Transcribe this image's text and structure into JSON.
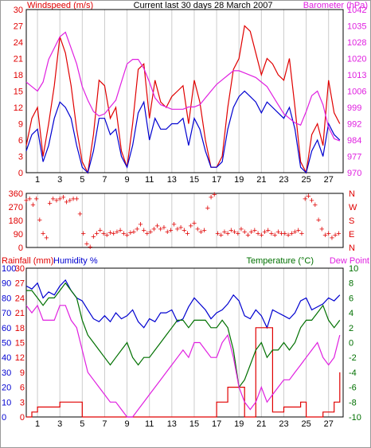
{
  "title": "Current last 30 days 28 March 2007",
  "colors": {
    "red": "#e00000",
    "blue": "#0000d0",
    "magenta": "#e020e0",
    "green": "#007000",
    "grid": "#cccccc",
    "axis": "#000000"
  },
  "chart_data": [
    {
      "type": "line",
      "panel": "wind-barometer",
      "left_axis_label": "Windspeed (m/s)",
      "right_axis_label": "Barometer (hPa)",
      "left_ticks": [
        0,
        3,
        6,
        9,
        12,
        15,
        18,
        21,
        24,
        27,
        30
      ],
      "right_ticks": [
        970,
        977,
        984,
        992,
        999,
        1006,
        1013,
        1020,
        1028,
        1035,
        1042
      ],
      "ylim_left": [
        0,
        30
      ],
      "ylim_right": [
        970,
        1042
      ],
      "xlim": [
        0,
        28.3
      ],
      "x_ticks": [
        1,
        3,
        5,
        7,
        9,
        11,
        13,
        15,
        17,
        19,
        21,
        23,
        25,
        27
      ],
      "series": [
        {
          "name": "Windspeed gust",
          "axis": "left",
          "color": "red",
          "x": [
            0,
            0.5,
            1,
            1.5,
            2,
            2.5,
            3,
            3.5,
            4,
            4.5,
            5,
            5.5,
            6,
            6.5,
            7,
            7.5,
            8,
            8.5,
            9,
            9.5,
            10,
            10.5,
            11,
            11.5,
            12,
            12.5,
            13,
            13.5,
            14,
            14.5,
            15,
            15.5,
            16,
            16.5,
            17,
            17.5,
            18,
            18.5,
            19,
            19.5,
            20,
            20.5,
            21,
            21.5,
            22,
            22.5,
            23,
            23.5,
            24,
            24.5,
            25,
            25.5,
            26,
            26.5,
            27,
            27.5,
            28
          ],
          "y": [
            5,
            10,
            12,
            3,
            9,
            16,
            25,
            22,
            16,
            8,
            2,
            0,
            7,
            17,
            16,
            10,
            12,
            4,
            1,
            9,
            19,
            20,
            10,
            17,
            13,
            12,
            14,
            15,
            16,
            9,
            17,
            13,
            6,
            1,
            1,
            3,
            12,
            19,
            21,
            27,
            26,
            22,
            18,
            21,
            20,
            18,
            17,
            21,
            12,
            2,
            0,
            7,
            9,
            5,
            17,
            11,
            9
          ]
        },
        {
          "name": "Windspeed average",
          "axis": "left",
          "color": "blue",
          "x": [
            0,
            0.5,
            1,
            1.5,
            2,
            2.5,
            3,
            3.5,
            4,
            4.5,
            5,
            5.5,
            6,
            6.5,
            7,
            7.5,
            8,
            8.5,
            9,
            9.5,
            10,
            10.5,
            11,
            11.5,
            12,
            12.5,
            13,
            13.5,
            14,
            14.5,
            15,
            15.5,
            16,
            16.5,
            17,
            17.5,
            18,
            18.5,
            19,
            19.5,
            20,
            20.5,
            21,
            21.5,
            22,
            22.5,
            23,
            23.5,
            24,
            24.5,
            25,
            25.5,
            26,
            26.5,
            27,
            27.5,
            28
          ],
          "y": [
            4,
            7,
            8,
            2,
            5,
            10,
            13,
            12,
            10,
            5,
            1,
            0,
            4,
            10,
            10,
            7,
            8,
            3,
            1,
            5,
            11,
            13,
            6,
            10,
            8,
            8,
            9,
            9,
            10,
            5,
            10,
            8,
            4,
            1,
            1,
            2,
            8,
            12,
            14,
            15,
            14,
            13,
            11,
            13,
            12,
            11,
            10,
            12,
            8,
            1,
            0,
            4,
            6,
            3,
            9,
            7,
            6
          ]
        },
        {
          "name": "Barometer",
          "axis": "right",
          "color": "magenta",
          "x": [
            0,
            0.5,
            1,
            1.5,
            2,
            2.5,
            3,
            3.5,
            4,
            4.5,
            5,
            5.5,
            6,
            6.5,
            7,
            7.5,
            8,
            8.5,
            9,
            9.5,
            10,
            10.5,
            11,
            11.5,
            12,
            12.5,
            13,
            13.5,
            14,
            14.5,
            15,
            15.5,
            16,
            16.5,
            17,
            17.5,
            18,
            18.5,
            19,
            19.5,
            20,
            20.5,
            21,
            21.5,
            22,
            22.5,
            23,
            23.5,
            24,
            24.5,
            25,
            25.5,
            26,
            26.5,
            27,
            27.5,
            28
          ],
          "y": [
            1010,
            1008,
            1006,
            1010,
            1020,
            1025,
            1030,
            1032,
            1025,
            1018,
            1008,
            1002,
            997,
            995,
            996,
            999,
            1002,
            1010,
            1018,
            1020,
            1020,
            1016,
            1010,
            1003,
            1000,
            999,
            998,
            998,
            998,
            999,
            999,
            1000,
            1003,
            1006,
            1009,
            1011,
            1013,
            1015,
            1015,
            1014,
            1013,
            1012,
            1010,
            1008,
            1004,
            1000,
            996,
            994,
            992,
            991,
            997,
            1004,
            1006,
            1000,
            990,
            985,
            984
          ]
        }
      ]
    },
    {
      "type": "scatter",
      "panel": "wind-direction",
      "left_ticks": [
        0,
        90,
        180,
        270,
        360
      ],
      "right_ticks": [
        "N",
        "E",
        "S",
        "W",
        "N"
      ],
      "ylim": [
        0,
        360
      ],
      "xlim": [
        0,
        28.3
      ],
      "series": [
        {
          "name": "Wind direction",
          "color": "red",
          "x": [
            0,
            0.3,
            0.6,
            0.9,
            1.2,
            1.5,
            1.8,
            2.1,
            2.4,
            2.7,
            3.0,
            3.3,
            3.6,
            3.9,
            4.2,
            4.5,
            4.8,
            5.1,
            5.4,
            5.7,
            6.0,
            6.3,
            6.6,
            6.9,
            7.2,
            7.5,
            7.8,
            8.1,
            8.4,
            8.7,
            9.0,
            9.3,
            9.6,
            9.9,
            10.2,
            10.5,
            10.8,
            11.1,
            11.4,
            11.7,
            12.0,
            12.3,
            12.6,
            12.9,
            13.2,
            13.5,
            13.8,
            14.1,
            14.4,
            14.7,
            15.0,
            15.3,
            15.6,
            15.9,
            16.2,
            16.5,
            16.8,
            17.1,
            17.4,
            17.7,
            18.0,
            18.3,
            18.6,
            18.9,
            19.2,
            19.5,
            19.8,
            20.1,
            20.4,
            20.7,
            21.0,
            21.3,
            21.6,
            21.9,
            22.2,
            22.5,
            22.8,
            23.1,
            23.4,
            23.7,
            24.0,
            24.3,
            24.6,
            24.9,
            25.2,
            25.5,
            25.8,
            26.1,
            26.4,
            26.7,
            27.0,
            27.3,
            27.6,
            27.9
          ],
          "y": [
            310,
            320,
            280,
            320,
            180,
            90,
            60,
            290,
            320,
            310,
            320,
            330,
            300,
            310,
            320,
            320,
            220,
            90,
            20,
            0,
            70,
            90,
            110,
            90,
            80,
            95,
            90,
            100,
            110,
            90,
            80,
            95,
            100,
            120,
            150,
            110,
            90,
            100,
            120,
            140,
            120,
            130,
            100,
            110,
            150,
            120,
            130,
            110,
            90,
            140,
            160,
            120,
            100,
            110,
            260,
            330,
            350,
            90,
            80,
            100,
            90,
            110,
            100,
            90,
            120,
            100,
            80,
            100,
            110,
            90,
            80,
            100,
            110,
            90,
            80,
            100,
            90,
            90,
            80,
            90,
            100,
            110,
            90,
            320,
            340,
            310,
            280,
            180,
            120,
            80,
            90,
            60,
            80,
            90
          ]
        }
      ]
    },
    {
      "type": "line",
      "panel": "temperature-humidity-rain",
      "left_axis_label_1": "Rainfall (mm)",
      "left_axis_label_2": "Humidity %",
      "right_axis_label_1": "Temperature (°C)",
      "right_axis_label_2": "Dew Point",
      "humidity_ticks": [
        0,
        10,
        20,
        30,
        40,
        50,
        60,
        70,
        80,
        90,
        100
      ],
      "rain_ticks": [
        0,
        3,
        6,
        9,
        12,
        15,
        18,
        21,
        24,
        27,
        30
      ],
      "temp_ticks": [
        -10,
        -8,
        -6,
        -4,
        -2,
        0,
        2,
        4,
        6,
        8,
        10
      ],
      "ylim_humidity": [
        0,
        100
      ],
      "ylim_rain": [
        0,
        30
      ],
      "ylim_temp": [
        -10,
        10
      ],
      "xlim": [
        0,
        28.3
      ],
      "series": [
        {
          "name": "Humidity",
          "axis": "humidity",
          "color": "blue",
          "x": [
            0,
            0.5,
            1,
            1.5,
            2,
            2.5,
            3,
            3.5,
            4,
            4.5,
            5,
            5.5,
            6,
            6.5,
            7,
            7.5,
            8,
            8.5,
            9,
            9.5,
            10,
            10.5,
            11,
            11.5,
            12,
            12.5,
            13,
            13.5,
            14,
            14.5,
            15,
            15.5,
            16,
            16.5,
            17,
            17.5,
            18,
            18.5,
            19,
            19.5,
            20,
            20.5,
            21,
            21.5,
            22,
            22.5,
            23,
            23.5,
            24,
            24.5,
            25,
            25.5,
            26,
            26.5,
            27,
            27.5,
            28
          ],
          "y": [
            88,
            86,
            90,
            80,
            84,
            82,
            88,
            92,
            85,
            80,
            78,
            72,
            66,
            64,
            68,
            64,
            70,
            66,
            68,
            72,
            64,
            60,
            66,
            64,
            70,
            70,
            72,
            64,
            66,
            74,
            80,
            76,
            72,
            66,
            70,
            72,
            76,
            82,
            78,
            68,
            66,
            72,
            68,
            60,
            72,
            70,
            68,
            66,
            70,
            78,
            80,
            72,
            74,
            76,
            80,
            78,
            82
          ]
        },
        {
          "name": "Rainfall",
          "axis": "rain",
          "color": "red",
          "x": [
            0,
            0.5,
            1,
            1.5,
            2,
            2.5,
            3,
            3.5,
            4,
            4.5,
            5,
            5.5,
            6,
            6.5,
            7,
            7.5,
            8,
            8.5,
            9,
            9.5,
            10,
            10.5,
            11,
            11.5,
            12,
            12.5,
            13,
            13.5,
            14,
            14.5,
            15,
            15.5,
            16,
            16.5,
            17,
            17.5,
            18,
            18.5,
            19,
            19.5,
            20,
            20.5,
            21,
            21.5,
            22,
            22.5,
            23,
            23.5,
            24,
            24.5,
            25,
            25.5,
            26,
            26.5,
            27,
            27.5,
            28
          ],
          "y": [
            0,
            1,
            2,
            2,
            2,
            2,
            3,
            3,
            3,
            3,
            0,
            0,
            0,
            0,
            0,
            0,
            0,
            0,
            0,
            0,
            0,
            0,
            0,
            0,
            0,
            0,
            0,
            0,
            0,
            0,
            0,
            0,
            0,
            0,
            3,
            3,
            6,
            6,
            6,
            0,
            0,
            18,
            18,
            18,
            1,
            1,
            2,
            2,
            2,
            3,
            0,
            0,
            0,
            1,
            1,
            3,
            9
          ]
        },
        {
          "name": "Temperature",
          "axis": "temp",
          "color": "green",
          "x": [
            0,
            0.5,
            1,
            1.5,
            2,
            2.5,
            3,
            3.5,
            4,
            4.5,
            5,
            5.5,
            6,
            6.5,
            7,
            7.5,
            8,
            8.5,
            9,
            9.5,
            10,
            10.5,
            11,
            11.5,
            12,
            12.5,
            13,
            13.5,
            14,
            14.5,
            15,
            15.5,
            16,
            16.5,
            17,
            17.5,
            18,
            18.5,
            19,
            19.5,
            20,
            20.5,
            21,
            21.5,
            22,
            22.5,
            23,
            23.5,
            24,
            24.5,
            25,
            25.5,
            26,
            26.5,
            27,
            27.5,
            28
          ],
          "y": [
            7,
            7,
            6,
            5,
            6,
            6,
            7,
            8,
            7,
            6,
            3,
            1,
            0,
            -1,
            -2,
            -3,
            -2,
            -1,
            0,
            -2,
            -3,
            -2,
            -2,
            -1,
            0,
            1,
            2,
            3,
            3,
            2,
            3,
            3,
            3,
            2,
            2,
            3,
            2,
            -1,
            -6,
            -5,
            -3,
            -1,
            0,
            -2,
            -1,
            -1,
            0,
            -1,
            0,
            2,
            3,
            3,
            4,
            5,
            3,
            2,
            3
          ]
        },
        {
          "name": "Dew Point",
          "axis": "temp",
          "color": "magenta",
          "x": [
            0,
            0.5,
            1,
            1.5,
            2,
            2.5,
            3,
            3.5,
            4,
            4.5,
            5,
            5.5,
            6,
            6.5,
            7,
            7.5,
            8,
            8.5,
            9,
            9.5,
            10,
            10.5,
            11,
            11.5,
            12,
            12.5,
            13,
            13.5,
            14,
            14.5,
            15,
            15.5,
            16,
            16.5,
            17,
            17.5,
            18,
            18.5,
            19,
            19.5,
            20,
            20.5,
            21,
            21.5,
            22,
            22.5,
            23,
            23.5,
            24,
            24.5,
            25,
            25.5,
            26,
            26.5,
            27,
            27.5,
            28
          ],
          "y": [
            5,
            4,
            5,
            3,
            3,
            3,
            5,
            5,
            3,
            2,
            -1,
            -4,
            -5,
            -6,
            -7,
            -8,
            -8,
            -9,
            -10,
            -10,
            -9,
            -8,
            -7,
            -6,
            -5,
            -4,
            -3,
            -2,
            -1,
            -2,
            0,
            0,
            -1,
            -2,
            -2,
            0,
            1,
            -2,
            -6,
            -8,
            -9,
            -8,
            -6,
            -8,
            -7,
            -6,
            -5,
            -5,
            -4,
            -3,
            -2,
            -1,
            0,
            -2,
            -3,
            -2,
            1
          ]
        }
      ]
    }
  ]
}
